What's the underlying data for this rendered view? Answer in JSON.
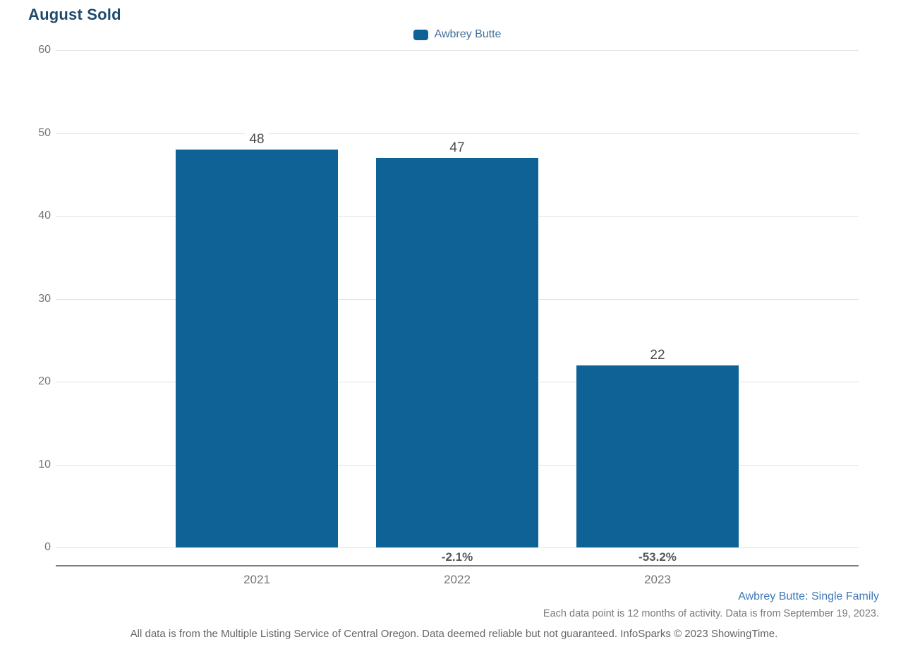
{
  "page": {
    "title": "August Sold"
  },
  "legend": {
    "label": "Awbrey Butte"
  },
  "chart_data": {
    "type": "bar",
    "title": "August Sold",
    "categories": [
      "2021",
      "2022",
      "2023"
    ],
    "series": [
      {
        "name": "Awbrey Butte",
        "values": [
          48,
          47,
          22
        ]
      }
    ],
    "value_labels": [
      "48",
      "47",
      "22"
    ],
    "pct_change_labels": [
      "",
      "-2.1%",
      "-53.2%"
    ],
    "ylim": [
      0,
      60
    ],
    "yticks": [
      0,
      10,
      20,
      30,
      40,
      50,
      60
    ],
    "grid": true,
    "legend_position": "top-center",
    "bar_color": "#0f6296"
  },
  "footer": {
    "series_description": "Awbrey Butte: Single Family",
    "data_note": "Each data point is 12 months of activity. Data is from September 19, 2023.",
    "disclaimer": "All data is from the Multiple Listing Service of Central Oregon. Data deemed reliable but not guaranteed. InfoSparks © 2023 ShowingTime."
  },
  "colors": {
    "bar": "#0f6296",
    "title_text": "#1e4a6e",
    "legend_text": "#44709a",
    "axis_text": "#757575",
    "value_text": "#4a4a4a",
    "pct_text": "#57585a",
    "link_blue": "#3f79b7",
    "gridline": "#e4e4e4",
    "axis_line": "#7d7d7d"
  }
}
